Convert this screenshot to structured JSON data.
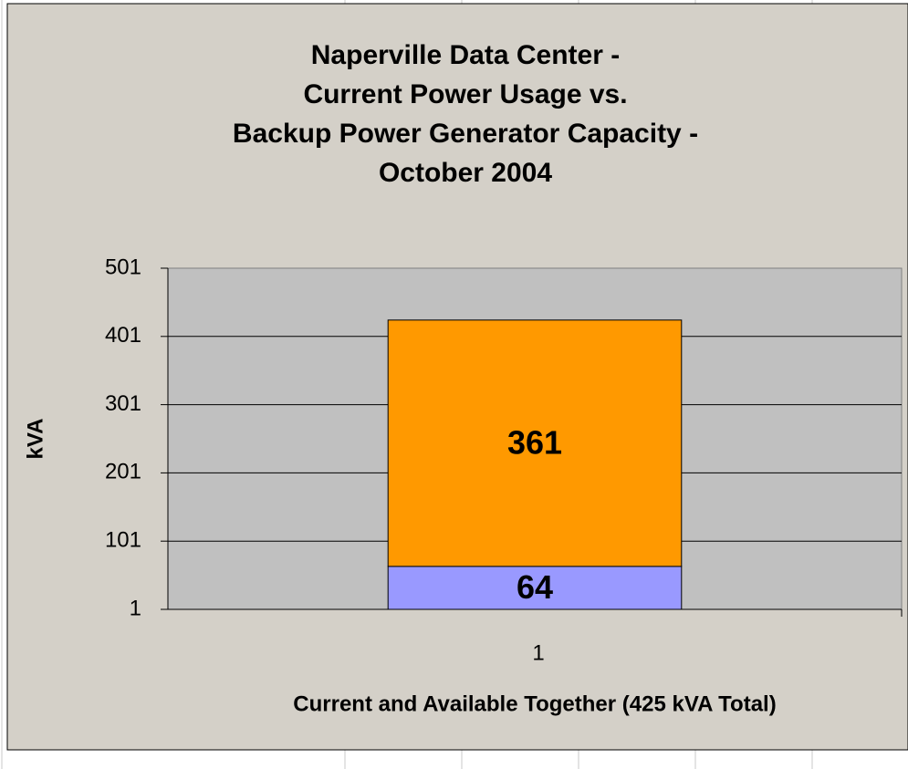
{
  "chart_data": {
    "type": "stacked-bar",
    "title": [
      "Naperville Data Center -",
      "Current Power Usage vs.",
      "Backup Power Generator Capacity -",
      "October 2004"
    ],
    "ylabel": "kVA",
    "xlabel": "Current and Available Together (425 kVA Total)",
    "categories": [
      "1"
    ],
    "series": [
      {
        "color": "#9999ff",
        "values": [
          64
        ]
      },
      {
        "color": "#ff9900",
        "values": [
          361
        ]
      }
    ],
    "ylim": [
      1,
      501
    ],
    "yticks": [
      1,
      101,
      201,
      301,
      401,
      501
    ],
    "grid": true
  }
}
